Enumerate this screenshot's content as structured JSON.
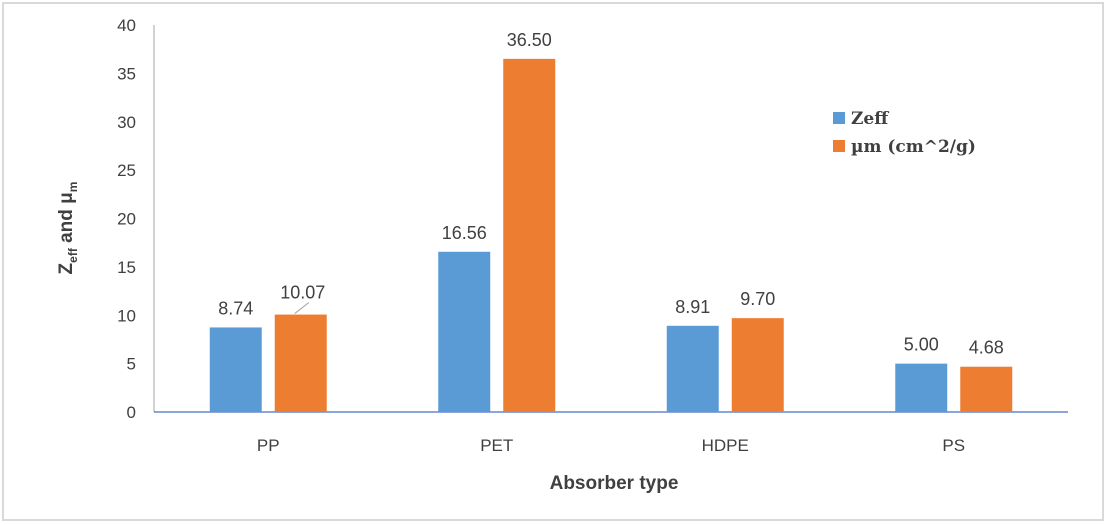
{
  "chart_data": {
    "type": "bar",
    "title": "",
    "xlabel": "Absorber type",
    "ylabel": {
      "base": "Z",
      "sub1": "eff",
      "middle": " and μ",
      "sub2": "m"
    },
    "categories": [
      "PP",
      "PET",
      "HDPE",
      "PS"
    ],
    "series": [
      {
        "name": "Zeff",
        "color": "#5b9bd5",
        "values": [
          8.74,
          16.56,
          8.91,
          5.0
        ],
        "labels": [
          "8.74",
          "16.56",
          "8.91",
          "5.00"
        ]
      },
      {
        "name": "µm (cm^2/g)",
        "color": "#ed7d31",
        "values": [
          10.07,
          36.5,
          9.7,
          4.68
        ],
        "labels": [
          "10.07",
          "36.50",
          "9.70",
          "4.68"
        ]
      }
    ],
    "ylim": [
      0,
      40
    ],
    "yticks": [
      "0",
      "5",
      "10",
      "15",
      "20",
      "25",
      "30",
      "35",
      "40"
    ],
    "grid": false,
    "legend_position": "top-right"
  }
}
